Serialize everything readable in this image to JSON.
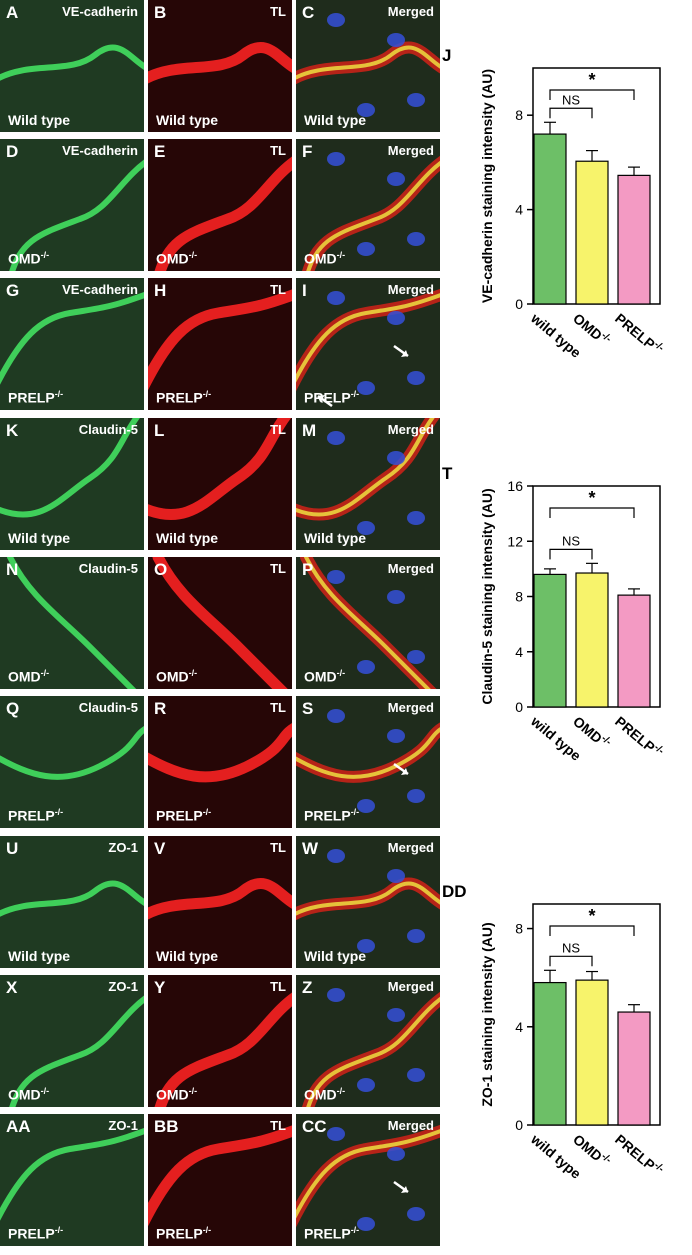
{
  "figure": {
    "rows": [
      {
        "panels": [
          {
            "letter": "A",
            "stain": "VE-cadherin",
            "condition": "Wild type",
            "sup": "",
            "channel": "green"
          },
          {
            "letter": "B",
            "stain": "TL",
            "condition": "Wild type",
            "sup": "",
            "channel": "red"
          },
          {
            "letter": "C",
            "stain": "Merged",
            "condition": "Wild type",
            "sup": "",
            "channel": "merged"
          }
        ]
      },
      {
        "panels": [
          {
            "letter": "D",
            "stain": "VE-cadherin",
            "condition": "OMD",
            "sup": "-/-",
            "channel": "green"
          },
          {
            "letter": "E",
            "stain": "TL",
            "condition": "OMD",
            "sup": "-/-",
            "channel": "red"
          },
          {
            "letter": "F",
            "stain": "Merged",
            "condition": "OMD",
            "sup": "-/-",
            "channel": "merged"
          }
        ]
      },
      {
        "panels": [
          {
            "letter": "G",
            "stain": "VE-cadherin",
            "condition": "PRELP",
            "sup": "-/-",
            "channel": "green"
          },
          {
            "letter": "H",
            "stain": "TL",
            "condition": "PRELP",
            "sup": "-/-",
            "channel": "red"
          },
          {
            "letter": "I",
            "stain": "Merged",
            "condition": "PRELP",
            "sup": "-/-",
            "channel": "merged",
            "arrows": 2
          }
        ]
      },
      {
        "panels": [
          {
            "letter": "K",
            "stain": "Claudin-5",
            "condition": "Wild type",
            "sup": "",
            "channel": "green"
          },
          {
            "letter": "L",
            "stain": "TL",
            "condition": "Wild type",
            "sup": "",
            "channel": "red"
          },
          {
            "letter": "M",
            "stain": "Merged",
            "condition": "Wild type",
            "sup": "",
            "channel": "merged"
          }
        ]
      },
      {
        "panels": [
          {
            "letter": "N",
            "stain": "Claudin-5",
            "condition": "OMD",
            "sup": "-/-",
            "channel": "green"
          },
          {
            "letter": "O",
            "stain": "TL",
            "condition": "OMD",
            "sup": "-/-",
            "channel": "red"
          },
          {
            "letter": "P",
            "stain": "Merged",
            "condition": "OMD",
            "sup": "-/-",
            "channel": "merged"
          }
        ]
      },
      {
        "panels": [
          {
            "letter": "Q",
            "stain": "Claudin-5",
            "condition": "PRELP",
            "sup": "-/-",
            "channel": "green"
          },
          {
            "letter": "R",
            "stain": "TL",
            "condition": "PRELP",
            "sup": "-/-",
            "channel": "red"
          },
          {
            "letter": "S",
            "stain": "Merged",
            "condition": "PRELP",
            "sup": "-/-",
            "channel": "merged",
            "arrows": 1
          }
        ]
      },
      {
        "panels": [
          {
            "letter": "U",
            "stain": "ZO-1",
            "condition": "Wild type",
            "sup": "",
            "channel": "green"
          },
          {
            "letter": "V",
            "stain": "TL",
            "condition": "Wild type",
            "sup": "",
            "channel": "red"
          },
          {
            "letter": "W",
            "stain": "Merged",
            "condition": "Wild type",
            "sup": "",
            "channel": "merged"
          }
        ]
      },
      {
        "panels": [
          {
            "letter": "X",
            "stain": "ZO-1",
            "condition": "OMD",
            "sup": "-/-",
            "channel": "green"
          },
          {
            "letter": "Y",
            "stain": "TL",
            "condition": "OMD",
            "sup": "-/-",
            "channel": "red"
          },
          {
            "letter": "Z",
            "stain": "Merged",
            "condition": "OMD",
            "sup": "-/-",
            "channel": "merged"
          }
        ]
      },
      {
        "panels": [
          {
            "letter": "AA",
            "stain": "ZO-1",
            "condition": "PRELP",
            "sup": "-/-",
            "channel": "green"
          },
          {
            "letter": "BB",
            "stain": "TL",
            "condition": "PRELP",
            "sup": "-/-",
            "channel": "red"
          },
          {
            "letter": "CC",
            "stain": "Merged",
            "condition": "PRELP",
            "sup": "-/-",
            "channel": "merged",
            "arrows": 1
          }
        ]
      }
    ]
  },
  "chart_data": [
    {
      "type": "bar",
      "letter": "J",
      "categories": [
        "wild type",
        "OMD",
        "PRELP"
      ],
      "category_sup": [
        "",
        "-/-",
        "-/-"
      ],
      "values": [
        7.2,
        6.05,
        5.45
      ],
      "errors": [
        0.5,
        0.45,
        0.35
      ],
      "ylabel": "VE-cadherin staining intensity (AU)",
      "ylim": [
        0,
        10
      ],
      "yticks": [
        "0",
        "4",
        "8"
      ],
      "colors": [
        "#6dbf67",
        "#f7f36b",
        "#f39ac3"
      ],
      "significance": [
        {
          "from": 0,
          "to": 1,
          "label": "NS"
        },
        {
          "from": 0,
          "to": 2,
          "label": "*"
        }
      ]
    },
    {
      "type": "bar",
      "letter": "T",
      "categories": [
        "wild type",
        "OMD",
        "PRELP"
      ],
      "category_sup": [
        "",
        "-/-",
        "-/-"
      ],
      "values": [
        9.6,
        9.7,
        8.1
      ],
      "errors": [
        0.4,
        0.7,
        0.45
      ],
      "ylabel": "Claudin-5 staining intensity (AU)",
      "ylim": [
        0,
        16
      ],
      "yticks": [
        "0",
        "4",
        "8",
        "12",
        "16"
      ],
      "colors": [
        "#6dbf67",
        "#f7f36b",
        "#f39ac3"
      ],
      "significance": [
        {
          "from": 0,
          "to": 1,
          "label": "NS"
        },
        {
          "from": 0,
          "to": 2,
          "label": "*"
        }
      ]
    },
    {
      "type": "bar",
      "letter": "DD",
      "categories": [
        "wild type",
        "OMD",
        "PRELP"
      ],
      "category_sup": [
        "",
        "-/-",
        "-/-"
      ],
      "values": [
        5.8,
        5.9,
        4.6
      ],
      "errors": [
        0.5,
        0.35,
        0.3
      ],
      "ylabel": "ZO-1 staining intensity (AU)",
      "ylim": [
        0,
        9
      ],
      "yticks": [
        "0",
        "4",
        "8"
      ],
      "colors": [
        "#6dbf67",
        "#f7f36b",
        "#f39ac3"
      ],
      "significance": [
        {
          "from": 0,
          "to": 1,
          "label": "NS"
        },
        {
          "from": 0,
          "to": 2,
          "label": "*"
        }
      ]
    }
  ]
}
